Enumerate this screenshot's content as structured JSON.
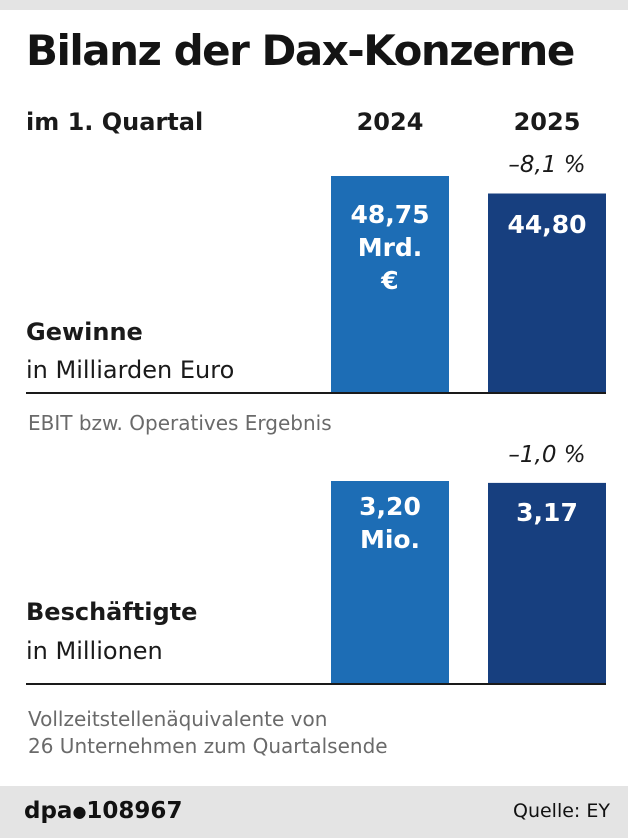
{
  "header": {
    "title": "Bilanz der Dax-Konzerne",
    "subtitle": "im 1. Quartal",
    "years": [
      "2024",
      "2025"
    ]
  },
  "chart_data": [
    {
      "type": "bar",
      "categories": [
        "2024",
        "2025"
      ],
      "values": [
        48.75,
        44.8
      ],
      "value_labels": [
        "48,75\nMrd.\n€",
        "44,80"
      ],
      "change_label": "–8,1 %",
      "title": "Gewinne",
      "subtitle": "in Milliarden Euro",
      "note": "EBIT bzw. Operatives Ergebnis",
      "ylim": [
        0,
        48.75
      ]
    },
    {
      "type": "bar",
      "categories": [
        "2024",
        "2025"
      ],
      "values": [
        3.2,
        3.17
      ],
      "value_labels": [
        "3,20\nMio.",
        "3,17"
      ],
      "change_label": "–1,0 %",
      "title": "Beschäftigte",
      "subtitle": "in Millionen",
      "note": "Vollzeitstellenäquivalente von\n26 Unternehmen zum Quartalsende",
      "ylim": [
        0,
        3.2
      ]
    }
  ],
  "colors": {
    "bar_2024": "#1d6db5",
    "bar_2025": "#173f7f",
    "baseline": "#1a1a1a"
  },
  "footer": {
    "brand": "dpa",
    "id": "108967",
    "source": "Quelle: EY"
  }
}
